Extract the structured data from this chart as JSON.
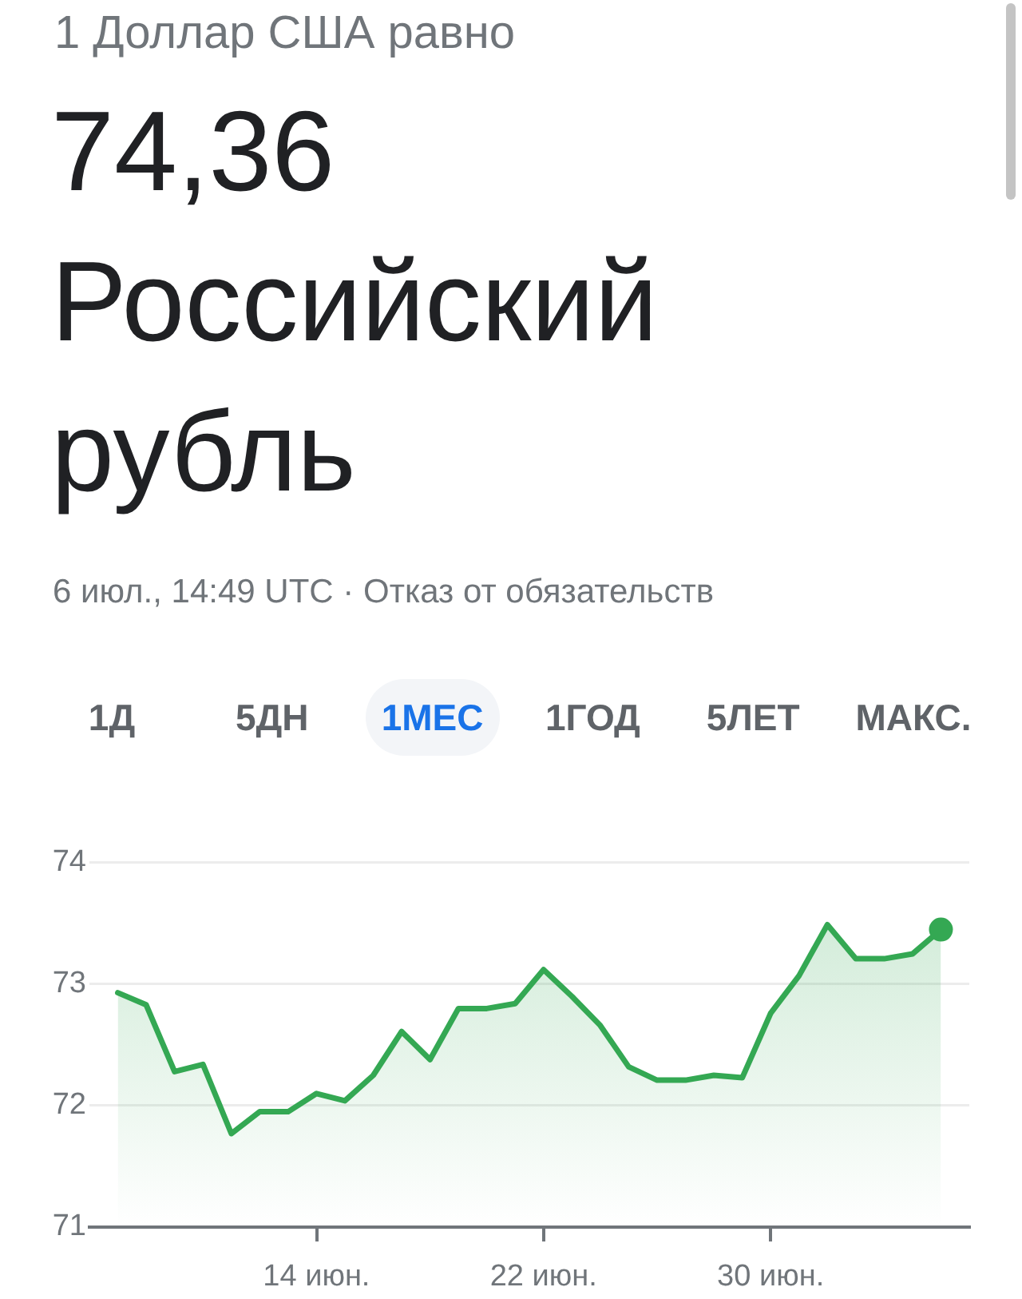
{
  "chart_data": {
    "type": "area",
    "subtitle": "1 Доллар США равно",
    "title": "74,36 Российский рубль",
    "annotations": [
      "6 июл., 14:49 UTC · Отказ от обязательств",
      "1Д",
      "5ДН",
      "1МЕС",
      "1ГОД",
      "5ЛЕТ",
      "МАКС."
    ],
    "x": [
      "--06-07",
      "--06-08",
      "--06-09",
      "--06-10",
      "--06-11",
      "--06-12",
      "--06-13",
      "--06-14",
      "--06-15",
      "--06-16",
      "--06-17",
      "--06-18",
      "--06-19",
      "--06-20",
      "--06-21",
      "--06-22",
      "--06-23",
      "--06-24",
      "--06-25",
      "--06-26",
      "--06-27",
      "--06-28",
      "--06-29",
      "--06-30",
      "--07-01",
      "--07-02",
      "--07-03",
      "--07-04",
      "--07-05",
      "--07-06"
    ],
    "series": [
      {
        "color": "#34a853",
        "values": [
          72.93,
          72.83,
          72.28,
          72.34,
          71.77,
          71.95,
          71.95,
          72.1,
          72.04,
          72.25,
          72.61,
          72.38,
          72.8,
          72.8,
          72.84,
          73.12,
          72.9,
          72.66,
          72.32,
          72.21,
          72.21,
          72.25,
          72.23,
          72.76,
          73.07,
          73.49,
          73.21,
          73.21,
          73.25,
          73.45
        ]
      },
      {
        "type": "scatter",
        "color": "#34a853",
        "marker": "circle",
        "x": [
          "--07-06"
        ],
        "values": [
          73.45
        ]
      }
    ],
    "xlim": [
      "--06-06",
      "--07-07"
    ],
    "xticks": [
      {
        "value": "--06-14",
        "label": "14 июн."
      },
      {
        "value": "--06-22",
        "label": "22 июн."
      },
      {
        "value": "--06-30",
        "label": "30 июн."
      }
    ],
    "ylim": [
      71,
      74
    ],
    "yticks": [
      71,
      72,
      73,
      74
    ],
    "grid": "y"
  }
}
